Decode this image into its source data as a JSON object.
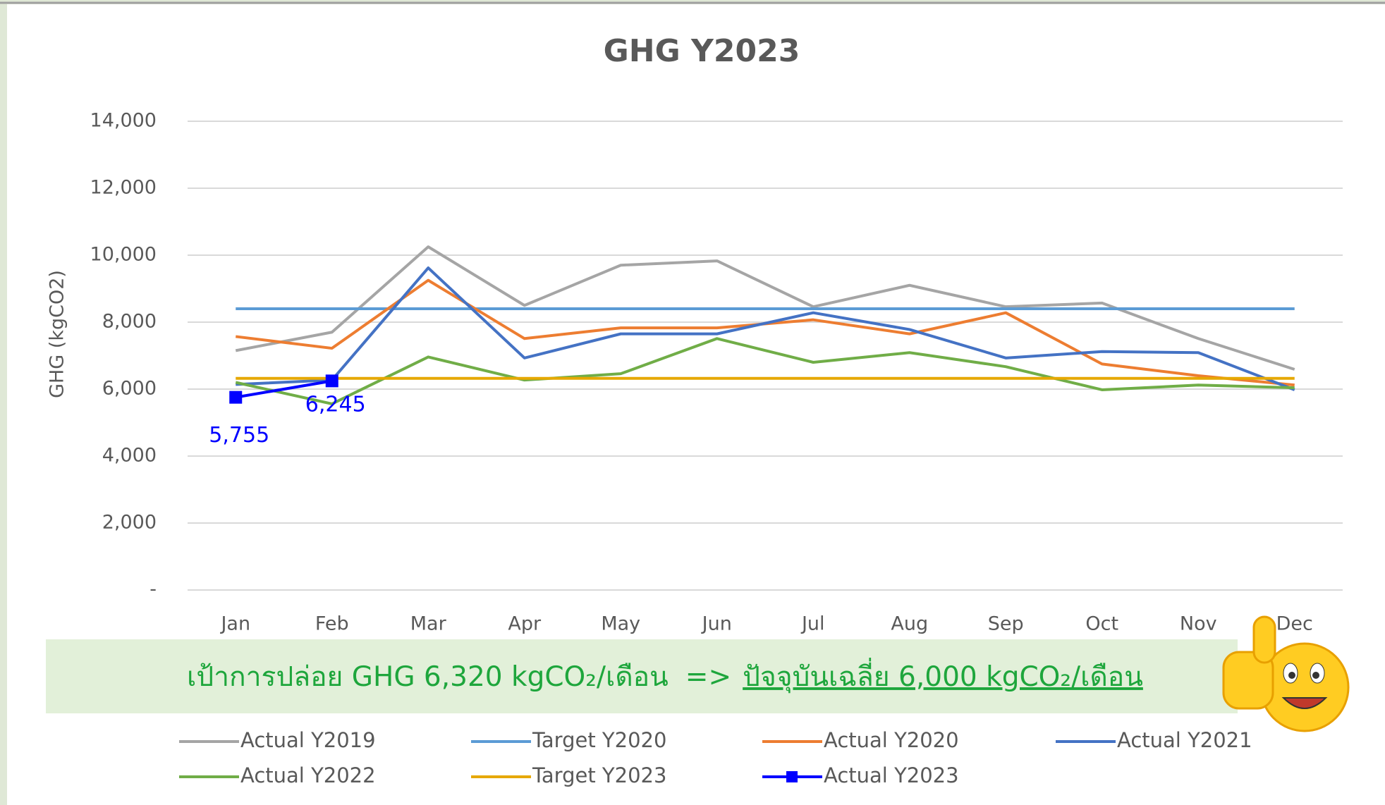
{
  "chart_data": {
    "type": "line",
    "title": "GHG Y2023",
    "y_label": "GHG (kgCO2)",
    "categories": [
      "Jan",
      "Feb",
      "Mar",
      "Apr",
      "May",
      "Jun",
      "Jul",
      "Aug",
      "Sep",
      "Oct",
      "Nov",
      "Dec"
    ],
    "ylim": [
      0,
      14000
    ],
    "yticks": [
      {
        "value": 0,
        "label": "-"
      },
      {
        "value": 2000,
        "label": "2,000"
      },
      {
        "value": 4000,
        "label": "4,000"
      },
      {
        "value": 6000,
        "label": "6,000"
      },
      {
        "value": 8000,
        "label": "8,000"
      },
      {
        "value": 10000,
        "label": "10,000"
      },
      {
        "value": 12000,
        "label": "12,000"
      },
      {
        "value": 14000,
        "label": "14,000"
      }
    ],
    "grid": true,
    "series": [
      {
        "name": "Actual Y2019",
        "color": "#a5a5a5",
        "values": [
          7150,
          7700,
          10250,
          8500,
          9700,
          9830,
          8460,
          9100,
          8460,
          8570,
          7510,
          6590
        ]
      },
      {
        "name": "Target Y2020",
        "color": "#5b9bd5",
        "values": [
          8400,
          8400,
          8400,
          8400,
          8400,
          8400,
          8400,
          8400,
          8400,
          8400,
          8400,
          8400
        ]
      },
      {
        "name": "Actual Y2020",
        "color": "#ed7d31",
        "values": [
          7570,
          7220,
          9250,
          7510,
          7830,
          7830,
          8070,
          7650,
          8280,
          6750,
          6400,
          6120
        ]
      },
      {
        "name": "Actual Y2021",
        "color": "#4472c4",
        "values": [
          6140,
          6270,
          9620,
          6930,
          7650,
          7650,
          8280,
          7780,
          6930,
          7120,
          7090,
          5980
        ]
      },
      {
        "name": "Actual Y2022",
        "color": "#70ad47",
        "values": [
          6200,
          5560,
          6960,
          6270,
          6460,
          7510,
          6800,
          7090,
          6670,
          5980,
          6120,
          6040
        ]
      },
      {
        "name": "Target Y2023",
        "color": "#e6a800",
        "values": [
          6320,
          6320,
          6320,
          6320,
          6320,
          6320,
          6320,
          6320,
          6320,
          6320,
          6320,
          6320
        ]
      },
      {
        "name": "Actual Y2023",
        "color": "#0000ff",
        "marker": "square",
        "values": [
          5755,
          6245,
          null,
          null,
          null,
          null,
          null,
          null,
          null,
          null,
          null,
          null
        ],
        "value_labels": [
          "5,755",
          "6,245",
          null,
          null,
          null,
          null,
          null,
          null,
          null,
          null,
          null,
          null
        ]
      }
    ],
    "banner": {
      "target": "เป้าการปล่อย GHG 6,320 kgCO₂/เดือน",
      "arrow": "=>",
      "current": "ปัจจุบันเฉลี่ย 6,000 kgCO₂/เดือน"
    }
  }
}
